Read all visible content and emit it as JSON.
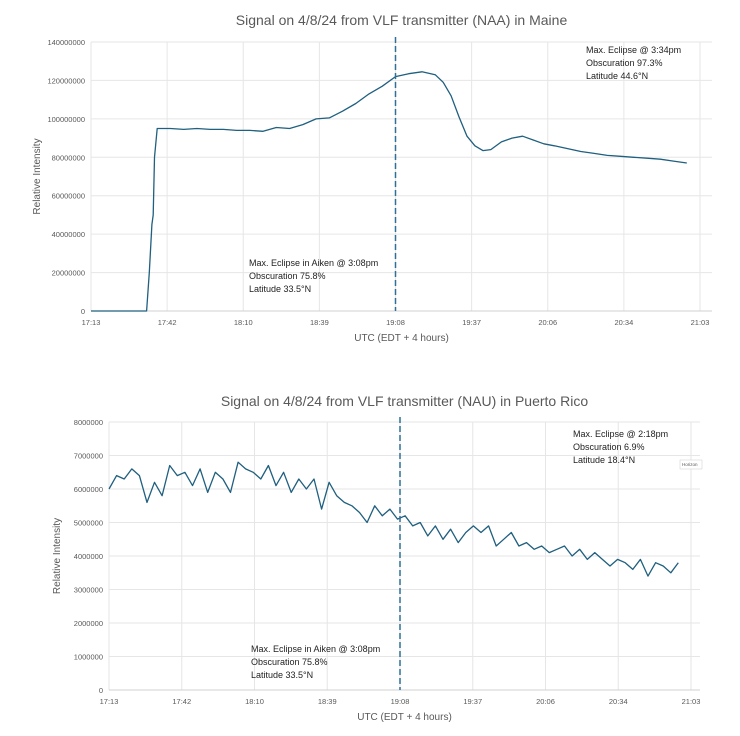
{
  "chart_data": [
    {
      "type": "line",
      "title": "Signal on 4/8/24 from VLF transmitter (NAA) in Maine",
      "xlabel": "UTC (EDT + 4 hours)",
      "ylabel": "Relative Intensity",
      "x_unit": "minutes after 17:13 UTC",
      "xlim": [
        0,
        230
      ],
      "ylim": [
        0,
        140000000
      ],
      "yticks": [
        "0",
        "20000000",
        "40000000",
        "60000000",
        "80000000",
        "100000000",
        "120000000",
        "140000000"
      ],
      "ytick_values": [
        0,
        20000000,
        40000000,
        60000000,
        80000000,
        100000000,
        120000000,
        140000000
      ],
      "xticks": [
        "17:13",
        "17:42",
        "18:10",
        "18:39",
        "19:08",
        "19:37",
        "20:06",
        "20:34",
        "21:03"
      ],
      "marker_x": 115,
      "annotations": [
        [
          "Max. Eclipse @ 3:34pm",
          "Obscuration 97.3%",
          "Latitude 44.6°N"
        ],
        [
          "Max. Eclipse in Aiken @ 3:08pm",
          "Obscuration 75.8%",
          "Latitude 33.5°N"
        ]
      ],
      "color": "#1f5f7f",
      "x": [
        0,
        21,
        22,
        23,
        23.5,
        24,
        25,
        26,
        30,
        35,
        40,
        45,
        50,
        55,
        60,
        65,
        70,
        75,
        80,
        85,
        90,
        95,
        100,
        105,
        110,
        115,
        120,
        125,
        130,
        133,
        136,
        139,
        142,
        145,
        148,
        151,
        155,
        159,
        163,
        167,
        171,
        175,
        180,
        185,
        190,
        195,
        200,
        205,
        210,
        215,
        220,
        225
      ],
      "values": [
        0,
        0,
        20,
        45,
        50,
        80,
        95,
        95,
        95,
        94.5,
        95,
        94.5,
        94.5,
        94,
        94,
        93.5,
        95.5,
        95,
        97,
        100,
        100.5,
        104,
        108,
        113,
        117,
        122,
        123.5,
        124.5,
        123,
        119,
        112,
        101,
        91,
        86,
        83.5,
        84,
        88,
        90,
        91,
        89,
        87,
        86,
        84.5,
        83,
        82,
        81,
        80.5,
        80,
        79.5,
        79,
        78,
        77
      ]
    },
    {
      "type": "line",
      "title": "Signal on 4/8/24 from VLF transmitter (NAU) in Puerto Rico",
      "xlabel": "UTC (EDT + 4 hours)",
      "ylabel": "Relative Intensity",
      "x_unit": "minutes after 17:13 UTC",
      "xlim": [
        0,
        230
      ],
      "ylim": [
        0,
        8000000
      ],
      "yticks": [
        "0",
        "1000000",
        "2000000",
        "3000000",
        "4000000",
        "5000000",
        "6000000",
        "7000000",
        "8000000"
      ],
      "ytick_values": [
        0,
        1000000,
        2000000,
        3000000,
        4000000,
        5000000,
        6000000,
        7000000,
        8000000
      ],
      "xticks": [
        "17:13",
        "17:42",
        "18:10",
        "18:39",
        "19:08",
        "19:37",
        "20:06",
        "20:34",
        "21:03"
      ],
      "marker_x": 115,
      "annotations": [
        [
          "Max. Eclipse @ 2:18pm",
          "Obscuration 6.9%",
          "Latitude 18.4°N"
        ],
        [
          "Max. Eclipse in Aiken @ 3:08pm",
          "Obscuration 75.8%",
          "Latitude 33.5°N"
        ]
      ],
      "legend_fragment": "Horizon",
      "color": "#1f5f7f",
      "x_step": 3,
      "values": [
        6.0,
        6.4,
        6.3,
        6.6,
        6.4,
        5.6,
        6.2,
        5.8,
        6.7,
        6.4,
        6.5,
        6.1,
        6.6,
        5.9,
        6.5,
        6.3,
        5.9,
        6.8,
        6.6,
        6.5,
        6.3,
        6.7,
        6.1,
        6.5,
        5.9,
        6.3,
        6.0,
        6.3,
        5.4,
        6.2,
        5.8,
        5.6,
        5.5,
        5.3,
        5.0,
        5.5,
        5.2,
        5.4,
        5.1,
        5.2,
        4.9,
        5.0,
        4.6,
        4.9,
        4.5,
        4.8,
        4.4,
        4.7,
        4.9,
        4.7,
        4.9,
        4.3,
        4.5,
        4.7,
        4.3,
        4.4,
        4.2,
        4.3,
        4.1,
        4.2,
        4.3,
        4.0,
        4.2,
        3.9,
        4.1,
        3.9,
        3.7,
        3.9,
        3.8,
        3.6,
        3.9,
        3.4,
        3.8,
        3.7,
        3.5,
        3.8
      ]
    }
  ]
}
